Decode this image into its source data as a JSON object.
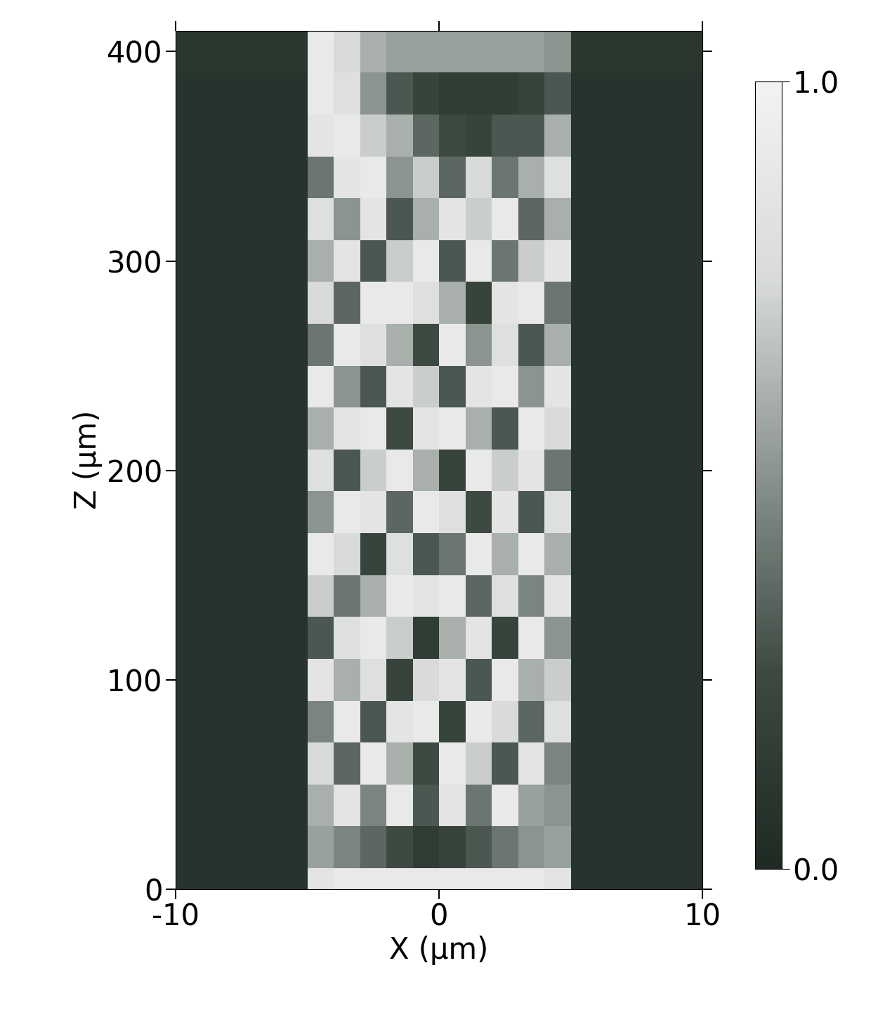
{
  "chart_data": {
    "type": "heatmap",
    "xlabel": "X (µm)",
    "ylabel": "Z (µm)",
    "xlim": [
      -10,
      10
    ],
    "ylim": [
      0,
      410
    ],
    "xticks": [
      -10,
      0,
      10
    ],
    "yticks": [
      0,
      100,
      200,
      300,
      400
    ],
    "x_edges": [
      -10,
      -5,
      -4,
      -3,
      -2,
      -1,
      0,
      1,
      2,
      3,
      4,
      5,
      10
    ],
    "y_edges": [
      0,
      10,
      30,
      50,
      70,
      90,
      110,
      130,
      150,
      170,
      190,
      210,
      230,
      250,
      270,
      290,
      310,
      330,
      350,
      370,
      390,
      410
    ],
    "cells": [
      [
        0.08,
        0.85,
        0.9,
        0.9,
        0.9,
        0.9,
        0.9,
        0.9,
        0.9,
        0.9,
        0.85,
        0.08
      ],
      [
        0.08,
        0.55,
        0.45,
        0.35,
        0.25,
        0.15,
        0.2,
        0.3,
        0.4,
        0.5,
        0.55,
        0.08
      ],
      [
        0.08,
        0.6,
        0.85,
        0.45,
        0.9,
        0.3,
        0.85,
        0.4,
        0.9,
        0.55,
        0.5,
        0.08
      ],
      [
        0.08,
        0.75,
        0.35,
        0.9,
        0.6,
        0.25,
        0.9,
        0.7,
        0.3,
        0.85,
        0.45,
        0.08
      ],
      [
        0.08,
        0.45,
        0.9,
        0.3,
        0.85,
        0.9,
        0.2,
        0.9,
        0.75,
        0.35,
        0.8,
        0.08
      ],
      [
        0.08,
        0.85,
        0.6,
        0.8,
        0.2,
        0.75,
        0.85,
        0.3,
        0.9,
        0.6,
        0.7,
        0.08
      ],
      [
        0.08,
        0.3,
        0.8,
        0.9,
        0.7,
        0.15,
        0.6,
        0.85,
        0.2,
        0.9,
        0.5,
        0.08
      ],
      [
        0.08,
        0.7,
        0.4,
        0.6,
        0.9,
        0.85,
        0.9,
        0.35,
        0.8,
        0.45,
        0.85,
        0.08
      ],
      [
        0.08,
        0.9,
        0.75,
        0.2,
        0.8,
        0.3,
        0.4,
        0.9,
        0.6,
        0.9,
        0.6,
        0.08
      ],
      [
        0.08,
        0.5,
        0.9,
        0.85,
        0.35,
        0.9,
        0.8,
        0.25,
        0.85,
        0.3,
        0.8,
        0.08
      ],
      [
        0.08,
        0.8,
        0.3,
        0.7,
        0.9,
        0.6,
        0.2,
        0.9,
        0.7,
        0.85,
        0.4,
        0.08
      ],
      [
        0.08,
        0.6,
        0.85,
        0.9,
        0.25,
        0.85,
        0.9,
        0.6,
        0.3,
        0.9,
        0.75,
        0.08
      ],
      [
        0.08,
        0.9,
        0.5,
        0.3,
        0.85,
        0.7,
        0.3,
        0.85,
        0.9,
        0.5,
        0.85,
        0.08
      ],
      [
        0.08,
        0.4,
        0.9,
        0.8,
        0.6,
        0.25,
        0.9,
        0.5,
        0.8,
        0.3,
        0.6,
        0.08
      ],
      [
        0.08,
        0.75,
        0.35,
        0.9,
        0.9,
        0.8,
        0.6,
        0.2,
        0.85,
        0.9,
        0.4,
        0.08
      ],
      [
        0.08,
        0.6,
        0.85,
        0.3,
        0.7,
        0.9,
        0.3,
        0.9,
        0.4,
        0.7,
        0.85,
        0.08
      ],
      [
        0.08,
        0.8,
        0.5,
        0.85,
        0.3,
        0.6,
        0.85,
        0.7,
        0.9,
        0.35,
        0.6,
        0.08
      ],
      [
        0.08,
        0.4,
        0.85,
        0.9,
        0.5,
        0.7,
        0.35,
        0.75,
        0.4,
        0.6,
        0.8,
        0.08
      ],
      [
        0.08,
        0.85,
        0.9,
        0.7,
        0.6,
        0.35,
        0.25,
        0.2,
        0.3,
        0.3,
        0.6,
        0.08
      ],
      [
        0.08,
        0.9,
        0.8,
        0.5,
        0.3,
        0.2,
        0.15,
        0.15,
        0.15,
        0.2,
        0.3,
        0.08
      ],
      [
        0.1,
        0.9,
        0.75,
        0.6,
        0.55,
        0.55,
        0.55,
        0.55,
        0.55,
        0.55,
        0.5,
        0.1
      ]
    ],
    "colorbar_range": [
      0,
      1
    ],
    "colorbar_ticks": [
      {
        "value": 0,
        "label": "0.0"
      },
      {
        "value": 1,
        "label": "1.0"
      }
    ]
  }
}
